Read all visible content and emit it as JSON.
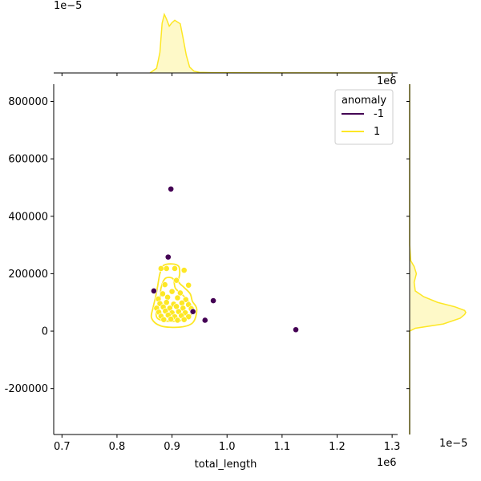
{
  "chart_data": {
    "type": "scatter",
    "subtype": "jointplot-with-kde",
    "xlabel": "total_length",
    "ylabel": "",
    "x_offset_label": "1e6",
    "y_offset_label": "1e6",
    "top_marginal_offset_label": "1e−5",
    "right_marginal_offset_label": "1e−5",
    "xlim": [
      685000,
      1310000
    ],
    "ylim": [
      -360000,
      860000
    ],
    "x_ticks": [
      700000,
      800000,
      900000,
      1000000,
      1100000,
      1200000,
      1300000
    ],
    "x_tick_labels": [
      "0.7",
      "0.8",
      "0.9",
      "1.0",
      "1.1",
      "1.2",
      "1.3"
    ],
    "y_ticks": [
      -200000,
      0,
      200000,
      400000,
      600000,
      800000
    ],
    "y_tick_labels": [
      "-200000",
      "0",
      "200000",
      "400000",
      "600000",
      "800000"
    ],
    "legend": {
      "title": "anomaly",
      "placement": "top-right",
      "entries": [
        {
          "label": "-1",
          "color": "#440154"
        },
        {
          "label": "1",
          "color": "#fde725"
        }
      ]
    },
    "series": [
      {
        "name": "-1",
        "color": "#440154",
        "points": [
          [
            898000,
            495000
          ],
          [
            893000,
            258000
          ],
          [
            867000,
            140000
          ],
          [
            975000,
            106000
          ],
          [
            938000,
            68000
          ],
          [
            960000,
            38000
          ],
          [
            1125000,
            5000
          ]
        ]
      },
      {
        "name": "1",
        "color": "#fde725",
        "points": [
          [
            880000,
            218000
          ],
          [
            890000,
            218000
          ],
          [
            905000,
            218000
          ],
          [
            922000,
            212000
          ],
          [
            887000,
            162000
          ],
          [
            908000,
            177000
          ],
          [
            930000,
            160000
          ],
          [
            883000,
            130000
          ],
          [
            900000,
            138000
          ],
          [
            915000,
            133000
          ],
          [
            875000,
            112000
          ],
          [
            892000,
            118000
          ],
          [
            910000,
            116000
          ],
          [
            925000,
            110000
          ],
          [
            878000,
            96000
          ],
          [
            890000,
            100000
          ],
          [
            903000,
            94000
          ],
          [
            918000,
            98000
          ],
          [
            930000,
            92000
          ],
          [
            872000,
            80000
          ],
          [
            884000,
            84000
          ],
          [
            896000,
            80000
          ],
          [
            908000,
            86000
          ],
          [
            920000,
            80000
          ],
          [
            935000,
            78000
          ],
          [
            876000,
            66000
          ],
          [
            888000,
            70000
          ],
          [
            900000,
            64000
          ],
          [
            912000,
            68000
          ],
          [
            924000,
            64000
          ],
          [
            880000,
            52000
          ],
          [
            893000,
            56000
          ],
          [
            905000,
            50000
          ],
          [
            917000,
            54000
          ],
          [
            930000,
            50000
          ],
          [
            885000,
            40000
          ],
          [
            898000,
            42000
          ],
          [
            910000,
            38000
          ],
          [
            922000,
            40000
          ]
        ]
      }
    ],
    "kde_contours": [
      {
        "series": "1",
        "color": "#fde725",
        "path": [
          [
            870000,
            118000
          ],
          [
            874000,
            158000
          ],
          [
            878000,
            200000
          ],
          [
            884000,
            228000
          ],
          [
            900000,
            234000
          ],
          [
            912000,
            226000
          ],
          [
            914000,
            200000
          ],
          [
            912000,
            172000
          ],
          [
            922000,
            152000
          ],
          [
            933000,
            130000
          ],
          [
            937000,
            104000
          ],
          [
            945000,
            76000
          ],
          [
            938000,
            30000
          ],
          [
            915000,
            14000
          ],
          [
            880000,
            18000
          ],
          [
            863000,
            45000
          ],
          [
            866000,
            85000
          ],
          [
            870000,
            118000
          ]
        ]
      },
      {
        "series": "1",
        "color": "#fde725",
        "path": [
          [
            878000,
            108000
          ],
          [
            880000,
            150000
          ],
          [
            888000,
            184000
          ],
          [
            902000,
            182000
          ],
          [
            906000,
            150000
          ],
          [
            918000,
            128000
          ],
          [
            928000,
            108000
          ],
          [
            936000,
            82000
          ],
          [
            930000,
            46000
          ],
          [
            900000,
            34000
          ],
          [
            874000,
            44000
          ],
          [
            872000,
            80000
          ],
          [
            878000,
            108000
          ]
        ]
      }
    ],
    "top_marginal": {
      "series": "1",
      "color": "#fde725",
      "ylim": [
        0,
        1.0
      ],
      "x": [
        860000,
        872000,
        878000,
        882000,
        886000,
        890000,
        895000,
        900000,
        905000,
        910000,
        915000,
        920000,
        926000,
        932000,
        940000,
        950000,
        970000,
        1000000,
        1100000,
        1300000
      ],
      "density": [
        0.0,
        0.08,
        0.35,
        0.85,
        1.0,
        0.92,
        0.8,
        0.86,
        0.9,
        0.87,
        0.84,
        0.6,
        0.3,
        0.1,
        0.03,
        0.01,
        0.005,
        0.003,
        0.002,
        0.0
      ]
    },
    "right_marginal": {
      "series": "1",
      "color": "#fde725",
      "y": [
        -360000,
        0,
        10000,
        25000,
        45000,
        58000,
        65000,
        72000,
        85000,
        100000,
        120000,
        140000,
        170000,
        200000,
        225000,
        245000,
        300000,
        500000,
        860000
      ],
      "density": [
        0.0,
        0.0,
        0.1,
        0.6,
        0.9,
        0.98,
        1.0,
        0.98,
        0.8,
        0.5,
        0.25,
        0.1,
        0.08,
        0.12,
        0.08,
        0.02,
        0.0,
        0.0,
        0.0
      ]
    }
  }
}
